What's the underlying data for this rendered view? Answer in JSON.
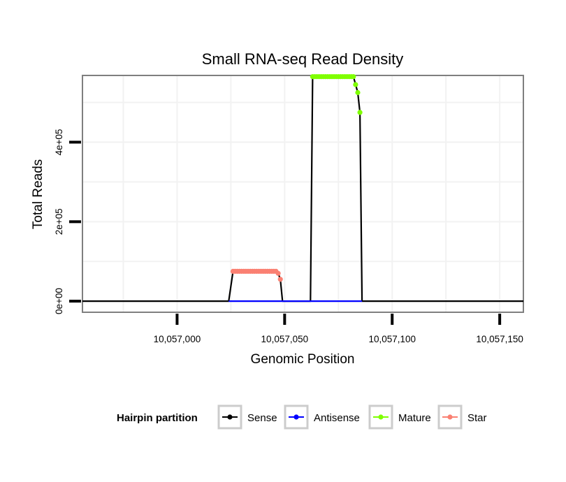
{
  "chart_data": {
    "type": "line",
    "title": "Small RNA-seq Read Density",
    "xlabel": "Genomic Position",
    "ylabel": "Total Reads",
    "xlim": [
      10056956,
      10057161
    ],
    "ylim": [
      -28000,
      568000
    ],
    "x_ticks": [
      {
        "value": 10057000,
        "label": "10,057,000"
      },
      {
        "value": 10057050,
        "label": "10,057,050"
      },
      {
        "value": 10057100,
        "label": "10,057,100"
      },
      {
        "value": 10057150,
        "label": "10,057,150"
      }
    ],
    "y_ticks": [
      {
        "value": 0,
        "label": "0e+00"
      },
      {
        "value": 200000,
        "label": "2e+05"
      },
      {
        "value": 400000,
        "label": "4e+05"
      }
    ],
    "grid": true,
    "legend": {
      "title": "Hairpin partition",
      "position": "bottom",
      "entries": [
        {
          "name": "Sense",
          "color": "#000000"
        },
        {
          "name": "Antisense",
          "color": "#0000ff"
        },
        {
          "name": "Mature",
          "color": "#7fff00"
        },
        {
          "name": "Star",
          "color": "#fa8072"
        }
      ]
    },
    "series": [
      {
        "name": "Sense",
        "color": "#000000",
        "points": [
          [
            10056956,
            0
          ],
          [
            10057024,
            0
          ],
          [
            10057026,
            75000
          ],
          [
            10057046,
            75000
          ],
          [
            10057047,
            70000
          ],
          [
            10057048,
            55000
          ],
          [
            10057049,
            0
          ],
          [
            10057062,
            0
          ],
          [
            10057063,
            565000
          ],
          [
            10057082,
            565000
          ],
          [
            10057083,
            545000
          ],
          [
            10057084,
            525000
          ],
          [
            10057085,
            475000
          ],
          [
            10057086,
            0
          ],
          [
            10057161,
            0
          ]
        ]
      },
      {
        "name": "Antisense",
        "color": "#0000ff",
        "points": [
          [
            10057024,
            0
          ],
          [
            10057086,
            0
          ]
        ]
      },
      {
        "name": "Mature",
        "color": "#7fff00",
        "x": [
          10057063,
          10057064,
          10057065,
          10057066,
          10057067,
          10057068,
          10057069,
          10057070,
          10057071,
          10057072,
          10057073,
          10057074,
          10057075,
          10057076,
          10057077,
          10057078,
          10057079,
          10057080,
          10057081,
          10057082,
          10057083,
          10057084,
          10057085
        ],
        "values": [
          565000,
          565000,
          565000,
          565000,
          565000,
          565000,
          565000,
          565000,
          565000,
          565000,
          565000,
          565000,
          565000,
          565000,
          565000,
          565000,
          565000,
          565000,
          565000,
          565000,
          545000,
          525000,
          475000
        ]
      },
      {
        "name": "Star",
        "color": "#fa8072",
        "x": [
          10057026,
          10057027,
          10057028,
          10057029,
          10057030,
          10057031,
          10057032,
          10057033,
          10057034,
          10057035,
          10057036,
          10057037,
          10057038,
          10057039,
          10057040,
          10057041,
          10057042,
          10057043,
          10057044,
          10057045,
          10057046,
          10057047,
          10057048
        ],
        "values": [
          75000,
          75000,
          75000,
          75000,
          75000,
          75000,
          75000,
          75000,
          75000,
          75000,
          75000,
          75000,
          75000,
          75000,
          75000,
          75000,
          75000,
          75000,
          75000,
          75000,
          75000,
          70000,
          55000
        ]
      }
    ]
  }
}
